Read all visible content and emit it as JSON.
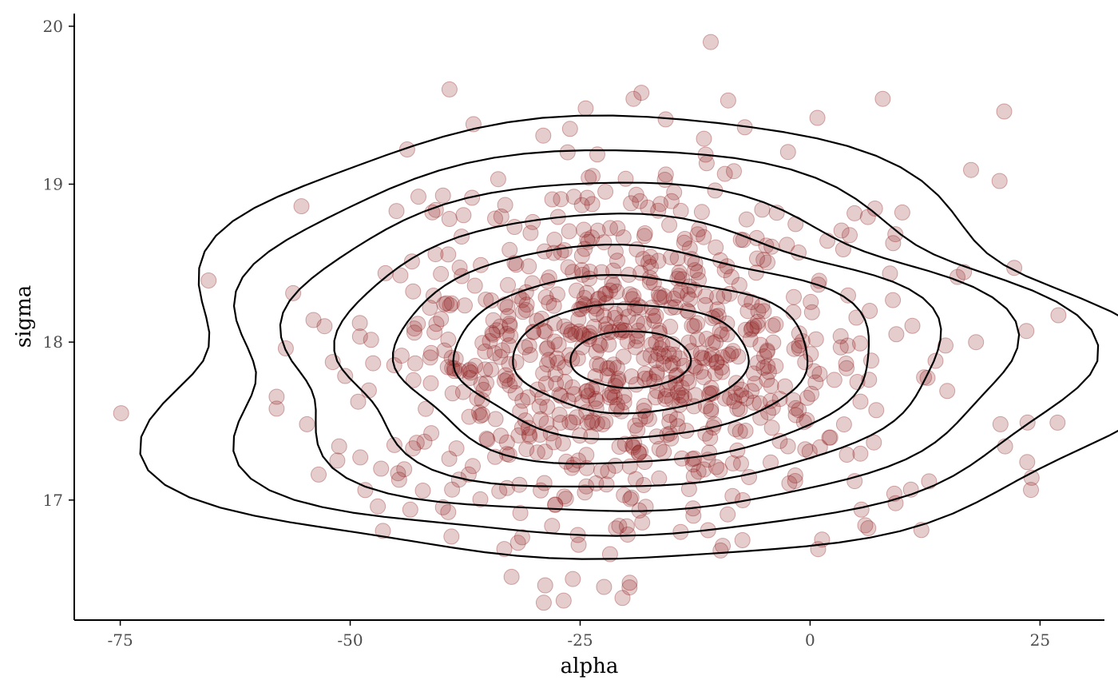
{
  "chart_data": {
    "type": "scatter",
    "title": "",
    "xlabel": "alpha",
    "ylabel": "sigma",
    "xlim": [
      -80,
      32
    ],
    "ylim": [
      16.24,
      20.08
    ],
    "xticks": [
      -75,
      -50,
      -25,
      0,
      25
    ],
    "xtick_labels": [
      "-75",
      "-50",
      "-25",
      "0",
      "25"
    ],
    "yticks": [
      17,
      18,
      19,
      20
    ],
    "ytick_labels": [
      "17",
      "18",
      "19",
      "20"
    ],
    "grid": false,
    "legend": "none",
    "point_color": "#8b1a1a",
    "point_opacity": 0.22,
    "contour_color": "#000000",
    "contours": {
      "center": [
        -19.5,
        17.88
      ],
      "levels": 8,
      "outer_radius_x": 52,
      "outer_radius_y": 1.35
    },
    "points_summary": {
      "n": 800,
      "mean_x": -19.0,
      "mean_y": 17.9,
      "sd_x": 13.8,
      "sd_y": 0.55,
      "seed": 7
    },
    "points_outliers": [
      [
        -74.9,
        17.55
      ],
      [
        -65.4,
        18.39
      ],
      [
        -57.0,
        17.96
      ],
      [
        -55.3,
        18.86
      ],
      [
        -54.0,
        18.14
      ],
      [
        -56.2,
        18.31
      ],
      [
        -54.7,
        17.48
      ],
      [
        -10.8,
        19.9
      ],
      [
        -39.2,
        19.6
      ],
      [
        -19.2,
        19.54
      ],
      [
        7.9,
        19.54
      ],
      [
        21.1,
        19.46
      ],
      [
        27.0,
        18.17
      ],
      [
        26.9,
        17.49
      ],
      [
        23.6,
        17.24
      ],
      [
        22.2,
        18.47
      ],
      [
        -47.0,
        16.96
      ],
      [
        -28.8,
        16.46
      ],
      [
        -22.4,
        16.45
      ],
      [
        -20.4,
        16.38
      ],
      [
        -25.8,
        16.5
      ],
      [
        -51.4,
        17.25
      ],
      [
        -51.2,
        17.34
      ],
      [
        6.0,
        16.84
      ],
      [
        9.3,
        16.98
      ],
      [
        12.1,
        16.81
      ],
      [
        1.3,
        16.75
      ],
      [
        -9.5,
        16.71
      ],
      [
        -15.7,
        19.41
      ],
      [
        0.8,
        19.42
      ],
      [
        -8.9,
        19.53
      ],
      [
        -7.1,
        19.36
      ],
      [
        17.5,
        19.09
      ],
      [
        20.6,
        19.02
      ],
      [
        20.7,
        17.48
      ],
      [
        21.2,
        17.34
      ],
      [
        -44.8,
        17.17
      ],
      [
        -48.9,
        17.27
      ],
      [
        -36.6,
        19.38
      ],
      [
        -26.1,
        19.35
      ],
      [
        -43.8,
        19.22
      ],
      [
        -24.4,
        19.48
      ]
    ]
  }
}
